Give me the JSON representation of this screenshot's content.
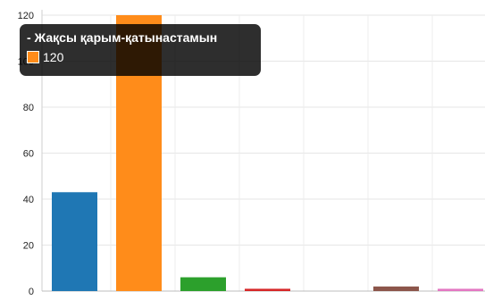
{
  "chart_data": {
    "type": "bar",
    "ylim": [
      0,
      120
    ],
    "y_ticks": [
      0,
      20,
      40,
      60,
      80,
      100,
      120
    ],
    "grid": true,
    "values": [
      43,
      120,
      6,
      1,
      0,
      2,
      1
    ],
    "colors": [
      "#1f77b4",
      "#ff8c1a",
      "#2ca02c",
      "#d62728",
      "#9467bd",
      "#8c564b",
      "#e377c2"
    ]
  },
  "tooltip": {
    "title": "- Жақсы қарым-қатынастамын",
    "value": "120",
    "swatch_color": "#ff8c1a"
  }
}
